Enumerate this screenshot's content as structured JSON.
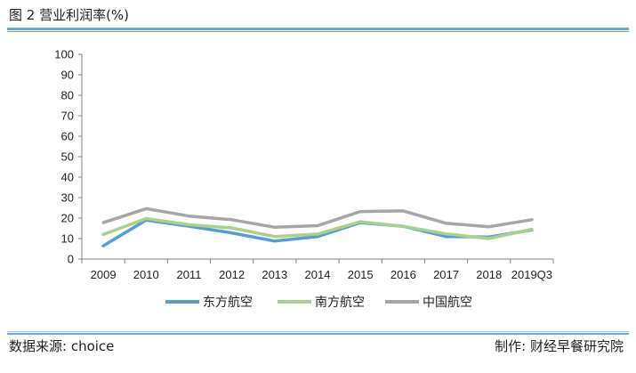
{
  "header": {
    "title": "图 2  营业利润率(%)"
  },
  "footer": {
    "source": "数据来源:  choice",
    "credit": "制作:  财经早餐研究院"
  },
  "chart_data": {
    "type": "line",
    "title": "营业利润率(%)",
    "xlabel": "",
    "ylabel": "",
    "categories": [
      "2009",
      "2010",
      "2011",
      "2012",
      "2013",
      "2014",
      "2015",
      "2016",
      "2017",
      "2018",
      "2019Q3"
    ],
    "ylim": [
      0,
      100
    ],
    "yticks": [
      "0",
      "10",
      "20",
      "30",
      "40",
      "50",
      "60",
      "70",
      "80",
      "90",
      "100"
    ],
    "grid": false,
    "legend_position": "bottom",
    "series": [
      {
        "name": "东方航空",
        "color": "#5b9bd5",
        "values": [
          6.5,
          19.0,
          16.0,
          12.8,
          8.8,
          11.0,
          17.8,
          16.0,
          11.0,
          10.8,
          14.2
        ]
      },
      {
        "name": "南方航空",
        "color": "#a9d18e",
        "values": [
          12.0,
          19.8,
          16.8,
          15.2,
          11.0,
          12.2,
          18.2,
          16.0,
          12.3,
          10.0,
          14.5
        ]
      },
      {
        "name": "中国航空",
        "color": "#a6a6a6",
        "values": [
          17.8,
          24.6,
          21.0,
          19.2,
          15.5,
          16.3,
          23.2,
          23.5,
          17.5,
          15.8,
          19.2
        ]
      }
    ]
  }
}
